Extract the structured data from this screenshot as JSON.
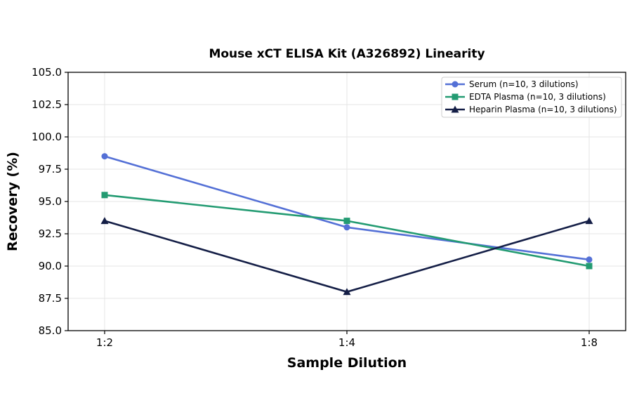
{
  "chart_data": {
    "type": "line",
    "title": "Mouse xCT ELISA Kit (A326892) Linearity",
    "xlabel": "Sample Dilution",
    "ylabel": "Recovery (%)",
    "categories": [
      "1:2",
      "1:4",
      "1:8"
    ],
    "ylim": [
      85.0,
      105.0
    ],
    "yticks": [
      "85.0",
      "87.5",
      "90.0",
      "92.5",
      "95.0",
      "97.5",
      "100.0",
      "102.5",
      "105.0"
    ],
    "grid": true,
    "legend_position": "top-right",
    "series": [
      {
        "name": "Serum (n=10, 3 dilutions)",
        "values": [
          98.5,
          93.0,
          90.5
        ],
        "color": "#5470d6",
        "marker": "circle"
      },
      {
        "name": "EDTA Plasma (n=10, 3 dilutions)",
        "values": [
          95.5,
          93.5,
          90.0
        ],
        "color": "#239b72",
        "marker": "square"
      },
      {
        "name": "Heparin Plasma (n=10, 3 dilutions)",
        "values": [
          93.5,
          88.0,
          93.5
        ],
        "color": "#141e46",
        "marker": "triangle"
      }
    ]
  }
}
